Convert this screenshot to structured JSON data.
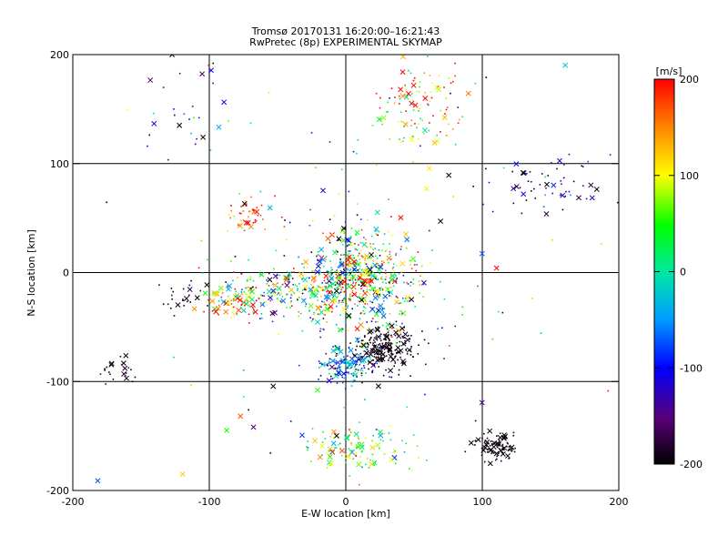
{
  "chart_data": {
    "type": "scatter",
    "title": "Tromsø 20170131 16:20:00–16:21:43",
    "subtitle": "RwPretec (8p) EXPERIMENTAL SKYMAP",
    "xlabel": "E-W location [km]",
    "ylabel": "N-S location [km]",
    "xlim": [
      -200,
      200
    ],
    "ylim": [
      -200,
      200
    ],
    "xticks": [
      "-200",
      "-100",
      "0",
      "100",
      "200"
    ],
    "yticks": [
      "-200",
      "-100",
      "0",
      "100",
      "200"
    ],
    "grid": true,
    "colorbar": {
      "label": "[m/s]",
      "min": -200,
      "max": 200,
      "ticks": [
        "-200",
        "-100",
        "0",
        "100",
        "200"
      ]
    },
    "point_clusters": [
      {
        "cx": 10,
        "cy": -5,
        "sx": 22,
        "sy": 22,
        "n": 600,
        "vmean": 40,
        "vsd": 120
      },
      {
        "cx": -40,
        "cy": -20,
        "sx": 25,
        "sy": 12,
        "n": 180,
        "vmean": 20,
        "vsd": 130
      },
      {
        "cx": -80,
        "cy": -28,
        "sx": 12,
        "sy": 8,
        "n": 70,
        "vmean": 140,
        "vsd": 80
      },
      {
        "cx": 28,
        "cy": -70,
        "sx": 12,
        "sy": 10,
        "n": 220,
        "vmean": -195,
        "vsd": 10
      },
      {
        "cx": 0,
        "cy": -85,
        "sx": 10,
        "sy": 8,
        "n": 150,
        "vmean": -70,
        "vsd": 60
      },
      {
        "cx": 10,
        "cy": -160,
        "sx": 20,
        "sy": 12,
        "n": 120,
        "vmean": 60,
        "vsd": 70
      },
      {
        "cx": 110,
        "cy": -160,
        "sx": 8,
        "sy": 7,
        "n": 90,
        "vmean": -195,
        "vsd": 8
      },
      {
        "cx": 55,
        "cy": 155,
        "sx": 18,
        "sy": 22,
        "n": 120,
        "vmean": 110,
        "vsd": 90
      },
      {
        "cx": 145,
        "cy": 80,
        "sx": 25,
        "sy": 14,
        "n": 60,
        "vmean": -160,
        "vsd": 60
      },
      {
        "cx": -70,
        "cy": 50,
        "sx": 12,
        "sy": 8,
        "n": 45,
        "vmean": 170,
        "vsd": 40
      },
      {
        "cx": -170,
        "cy": -90,
        "sx": 8,
        "sy": 7,
        "n": 22,
        "vmean": -190,
        "vsd": 15
      },
      {
        "cx": -120,
        "cy": 150,
        "sx": 20,
        "sy": 25,
        "n": 25,
        "vmean": -150,
        "vsd": 80
      },
      {
        "cx": -120,
        "cy": -20,
        "sx": 10,
        "sy": 10,
        "n": 25,
        "vmean": -190,
        "vsd": 15
      },
      {
        "cx": 0,
        "cy": 0,
        "sx": 95,
        "sy": 95,
        "n": 120,
        "vmean": 0,
        "vsd": 150
      }
    ]
  }
}
